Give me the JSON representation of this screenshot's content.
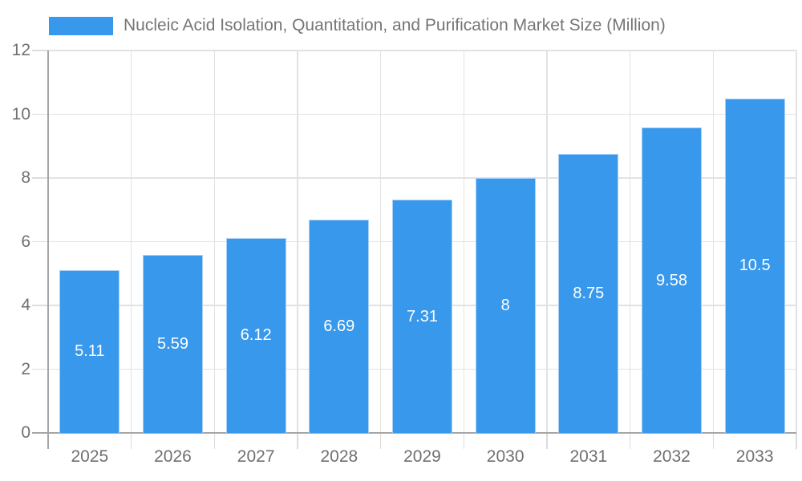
{
  "chart_data": {
    "type": "bar",
    "title": "Nucleic Acid Isolation, Quantitation, and Purification Market Size (Million)",
    "categories": [
      "2025",
      "2026",
      "2027",
      "2028",
      "2029",
      "2030",
      "2031",
      "2032",
      "2033"
    ],
    "values": [
      5.11,
      5.59,
      6.12,
      6.69,
      7.31,
      8,
      8.75,
      9.58,
      10.5
    ],
    "value_labels": [
      "5.11",
      "5.59",
      "6.12",
      "6.69",
      "7.31",
      "8",
      "8.75",
      "9.58",
      "10.5"
    ],
    "xlabel": "",
    "ylabel": "",
    "ylim": [
      0,
      12
    ],
    "ytick_step": 2,
    "ytick_labels": [
      "0",
      "2",
      "4",
      "6",
      "8",
      "10",
      "12"
    ],
    "grid": "on",
    "legend_position": "top-left",
    "value_label_position": "inside-center",
    "colors": {
      "bar": "#3898EC",
      "bar_edge": "#a9d0f5",
      "axis_line": "#a6a6a6",
      "gridline": "#e2e2e2",
      "tick": "#dcdcdc",
      "axis_text": "#707070",
      "legend_text": "#757575",
      "value_label_text": "#ffffff",
      "background": "#ffffff"
    }
  }
}
